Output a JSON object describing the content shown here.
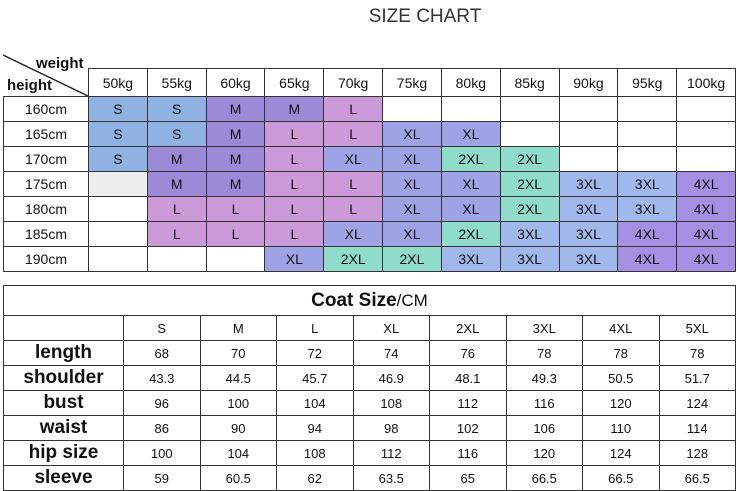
{
  "header": {
    "title": "SIZE CHART"
  },
  "size_table": {
    "corner_top": "weight",
    "corner_bottom": "height",
    "columns": [
      "50kg",
      "55kg",
      "60kg",
      "65kg",
      "70kg",
      "75kg",
      "80kg",
      "85kg",
      "90kg",
      "95kg",
      "100kg"
    ],
    "rows": [
      {
        "height": "160cm",
        "sizes": [
          "S",
          "S",
          "M",
          "M",
          "L",
          null,
          null,
          null,
          null,
          null,
          null
        ]
      },
      {
        "height": "165cm",
        "sizes": [
          "S",
          "S",
          "M",
          "L",
          "L",
          "XL",
          "XL",
          null,
          null,
          null,
          null
        ]
      },
      {
        "height": "170cm",
        "sizes": [
          "S",
          "M",
          "M",
          "L",
          "XL",
          "XL",
          "2XL",
          "2XL",
          null,
          null,
          null
        ]
      },
      {
        "height": "175cm",
        "sizes": [
          null,
          "M",
          "M",
          "L",
          "L",
          "XL",
          "XL",
          "2XL",
          "3XL",
          "3XL",
          "4XL"
        ]
      },
      {
        "height": "180cm",
        "sizes": [
          null,
          "L",
          "L",
          "L",
          "L",
          "XL",
          "XL",
          "2XL",
          "3XL",
          "3XL",
          "4XL"
        ]
      },
      {
        "height": "185cm",
        "sizes": [
          null,
          "L",
          "L",
          "L",
          "XL",
          "XL",
          "2XL",
          "3XL",
          "3XL",
          "4XL",
          "4XL"
        ]
      },
      {
        "height": "190cm",
        "sizes": [
          null,
          null,
          null,
          "XL",
          "2XL",
          "2XL",
          "3XL",
          "3XL",
          "3XL",
          "4XL",
          "4XL"
        ]
      }
    ],
    "size_colors": {
      "S": "#8fb2e3",
      "M": "#9c8ad8",
      "L": "#cc9ad8",
      "XL": "#9ea3e6",
      "2XL": "#8fdccb",
      "3XL": "#a0b8ec",
      "4XL": "#a58fe2"
    }
  },
  "coat_table": {
    "title": "Coat Size",
    "unit": "/CM",
    "sizes": [
      "S",
      "M",
      "L",
      "XL",
      "2XL",
      "3XL",
      "4XL",
      "5XL"
    ],
    "rows": [
      {
        "label": "length",
        "values": [
          68,
          70,
          72,
          74,
          76,
          78,
          78,
          78
        ]
      },
      {
        "label": "shoulder",
        "values": [
          43.3,
          44.5,
          45.7,
          46.9,
          48.1,
          49.3,
          50.5,
          51.7
        ]
      },
      {
        "label": "bust",
        "values": [
          96,
          100,
          104,
          108,
          112,
          116,
          120,
          124
        ]
      },
      {
        "label": "waist",
        "values": [
          86,
          90,
          94,
          98,
          102,
          106,
          110,
          114
        ]
      },
      {
        "label": "hip size",
        "values": [
          100,
          104,
          108,
          112,
          116,
          120,
          124,
          128
        ]
      },
      {
        "label": "sleeve",
        "values": [
          59,
          60.5,
          62,
          63.5,
          65,
          66.5,
          66.5,
          66.5
        ]
      }
    ]
  }
}
